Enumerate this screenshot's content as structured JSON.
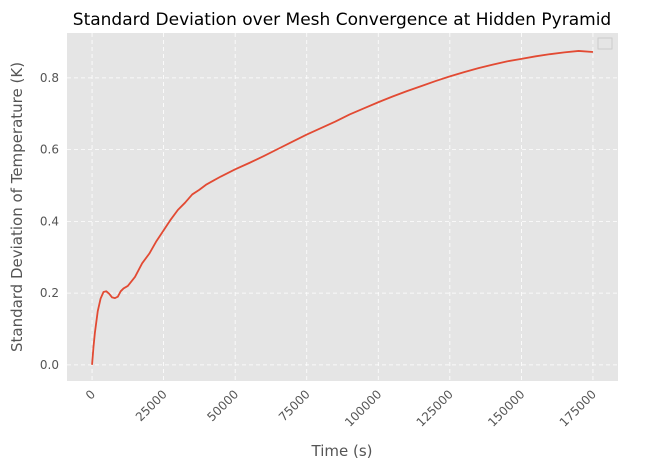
{
  "chart_data": {
    "type": "line",
    "title": "Standard Deviation over Mesh Convergence at Hidden Pyramid",
    "xlabel": "Time (s)",
    "ylabel": "Standard Deviation of Temperature (K)",
    "xlim": [
      -8750,
      183750
    ],
    "ylim": [
      -0.045,
      0.925
    ],
    "xticks": [
      0,
      25000,
      50000,
      75000,
      100000,
      125000,
      150000,
      175000
    ],
    "yticks": [
      0.0,
      0.2,
      0.4,
      0.6,
      0.8
    ],
    "grid": true,
    "legend": "top-right",
    "colors": {
      "line": "#E24A33",
      "plot_bg": "#E5E5E5",
      "grid": "#FFFFFF"
    },
    "series": [
      {
        "x": [
          0,
          500,
          1000,
          2000,
          3000,
          4000,
          5000,
          6000,
          7000,
          8000,
          9000,
          10000,
          11000,
          12500,
          15000,
          17500,
          20000,
          22500,
          25000,
          27500,
          30000,
          32500,
          35000,
          37500,
          40000,
          42500,
          45000,
          47500,
          50000,
          55000,
          60000,
          65000,
          70000,
          75000,
          80000,
          85000,
          90000,
          95000,
          100000,
          105000,
          110000,
          115000,
          120000,
          125000,
          130000,
          135000,
          140000,
          145000,
          150000,
          155000,
          160000,
          165000,
          170000,
          175000
        ],
        "y": [
          0.0,
          0.05,
          0.09,
          0.15,
          0.185,
          0.203,
          0.205,
          0.198,
          0.188,
          0.186,
          0.19,
          0.205,
          0.213,
          0.22,
          0.245,
          0.283,
          0.31,
          0.345,
          0.375,
          0.405,
          0.432,
          0.452,
          0.475,
          0.488,
          0.503,
          0.514,
          0.525,
          0.535,
          0.545,
          0.563,
          0.582,
          0.602,
          0.622,
          0.642,
          0.66,
          0.678,
          0.698,
          0.715,
          0.732,
          0.748,
          0.763,
          0.777,
          0.791,
          0.804,
          0.816,
          0.827,
          0.837,
          0.846,
          0.853,
          0.86,
          0.866,
          0.871,
          0.875,
          0.872
        ]
      }
    ]
  }
}
